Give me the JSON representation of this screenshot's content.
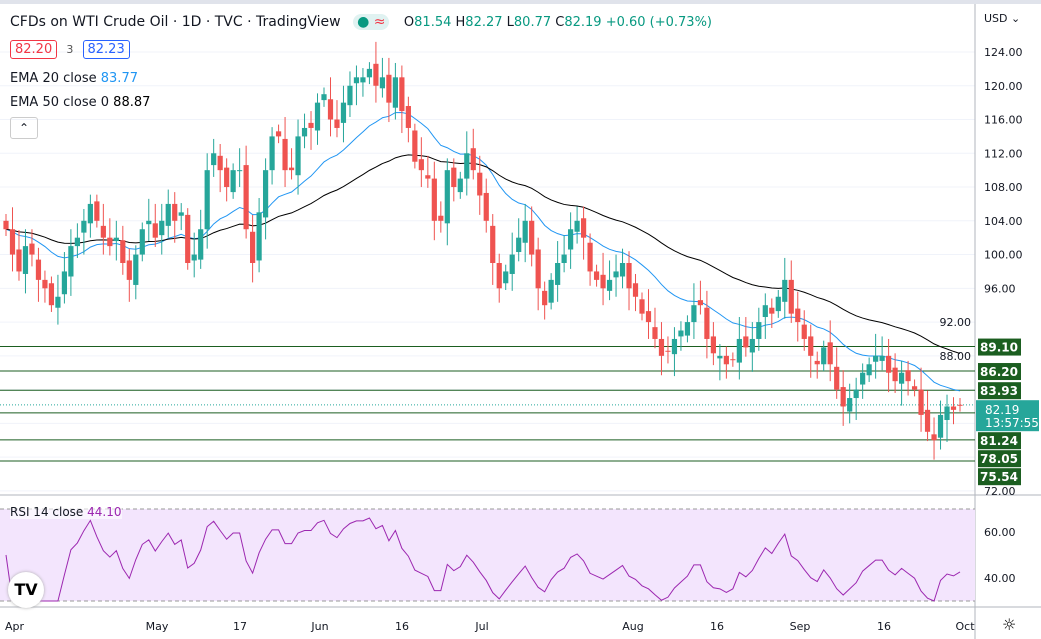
{
  "header": {
    "title": "CFDs on WTI Crude Oil · 1D · TVC · TradingView",
    "ohlc": {
      "o": "81.54",
      "h": "82.27",
      "l": "80.77",
      "c": "82.19",
      "change": "+0.60 (+0.73%)"
    },
    "bid": "82.20",
    "spread": "3",
    "ask": "82.23",
    "ema20_label": "EMA 20 close",
    "ema20_value": "83.77",
    "ema50_label": "EMA 50 close 0",
    "ema50_value": "88.87",
    "currency": "USD"
  },
  "chart_data": {
    "type": "candlestick",
    "ylim": [
      72,
      126
    ],
    "y_ticks": [
      "124.00",
      "120.00",
      "116.00",
      "112.00",
      "108.00",
      "104.00",
      "100.00",
      "96.00",
      "92.00",
      "88.00",
      "72.00"
    ],
    "x_ticks": [
      "Apr",
      "May",
      "17",
      "Jun",
      "16",
      "Jul",
      "Aug",
      "16",
      "Sep",
      "16",
      "Oct"
    ],
    "closes": [
      103,
      100,
      98,
      101,
      100,
      97,
      96,
      94,
      95,
      98,
      101,
      102,
      104,
      106,
      104,
      102,
      101,
      102,
      99,
      97,
      100,
      103,
      104,
      102,
      104,
      106,
      104,
      105,
      99,
      100,
      103,
      110,
      112,
      110,
      108,
      110,
      110,
      103,
      99,
      105,
      110,
      114,
      114,
      110,
      110,
      114,
      115,
      115,
      118,
      119,
      116,
      115,
      118,
      120,
      121,
      121,
      122,
      120,
      121,
      118,
      121,
      117,
      115,
      111,
      110,
      109,
      104,
      104,
      110,
      108,
      109,
      112,
      110,
      107,
      104,
      99,
      96,
      98,
      100,
      102,
      104,
      100,
      96,
      94,
      97,
      99,
      100,
      103,
      104,
      102,
      98,
      97,
      96,
      97,
      98,
      99,
      96,
      95,
      93,
      92,
      90,
      88,
      88.5,
      90,
      91,
      92,
      94,
      94,
      90,
      88.3,
      88,
      87,
      87.5,
      90,
      89,
      90,
      92,
      94,
      93,
      95,
      97,
      93,
      92,
      90,
      88,
      87,
      89,
      87,
      84,
      82,
      83,
      84,
      86,
      87,
      88,
      88,
      86,
      85,
      86,
      85,
      84,
      81,
      79,
      78,
      81,
      82,
      81.6,
      82.19
    ],
    "levels": [
      89.1,
      86.2,
      83.93,
      81.24,
      78.05,
      75.54
    ],
    "last_price": "82.19",
    "countdown": "13:57:55",
    "rsi": {
      "label": "RSI 14 close",
      "value": "44.10",
      "ticks": [
        "60.00",
        "40.00"
      ],
      "band": [
        30,
        70
      ]
    },
    "colors": {
      "up": "#26a69a",
      "down": "#ef5350",
      "ema20": "#2196f3",
      "ema50": "#000000",
      "levels": "#1b5e20",
      "rsi": "#9c27b0",
      "rsi_bg": "#f3e5fd"
    }
  }
}
